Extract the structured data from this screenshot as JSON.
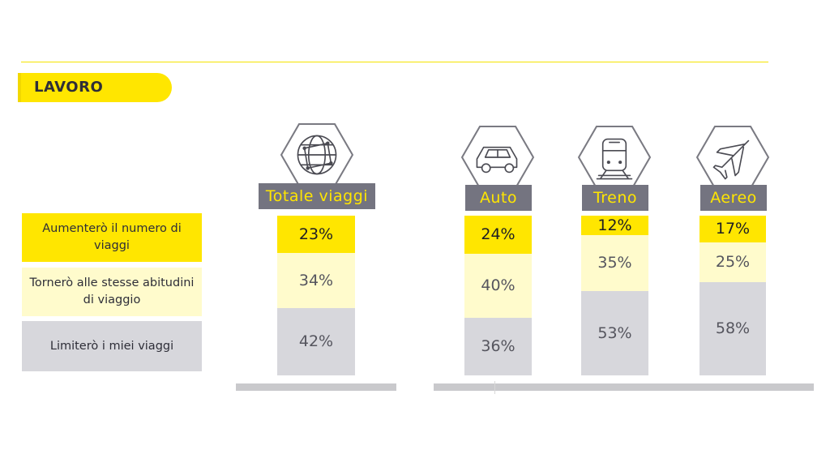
{
  "section": {
    "title": "LAVORO"
  },
  "chart_data": {
    "type": "bar",
    "stacked": true,
    "orientation": "vertical",
    "normalized_percent": true,
    "categories": [
      "Totale viaggi",
      "Auto",
      "Treno",
      "Aereo"
    ],
    "category_icons": [
      "globe-network-icon",
      "car-icon",
      "train-icon",
      "airplane-icon"
    ],
    "series": [
      {
        "name": "Aumenterò il numero di viaggi",
        "color": "#ffe600",
        "labels": [
          "23%",
          "24%",
          "12%",
          "17%"
        ],
        "values": [
          23,
          24,
          12,
          17
        ]
      },
      {
        "name": "Tornerò alle stesse abitudini di viaggio",
        "color": "#fffbcc",
        "labels": [
          "34%",
          "40%",
          "35%",
          "25%"
        ],
        "values": [
          34,
          40,
          35,
          25
        ]
      },
      {
        "name": "Limiterò i miei viaggi",
        "color": "#d7d7dc",
        "labels": [
          "42%",
          "36%",
          "53%",
          "58%"
        ],
        "values": [
          42,
          36,
          53,
          58
        ]
      }
    ],
    "legend_position": "left",
    "grid": false,
    "title": "",
    "xlabel": "",
    "ylabel": ""
  },
  "colors": {
    "accent_yellow": "#ffe600",
    "light_yellow": "#fffbcc",
    "gray_segment": "#d7d7dc",
    "header_gray": "#747480",
    "text_dark": "#2e2e38"
  }
}
